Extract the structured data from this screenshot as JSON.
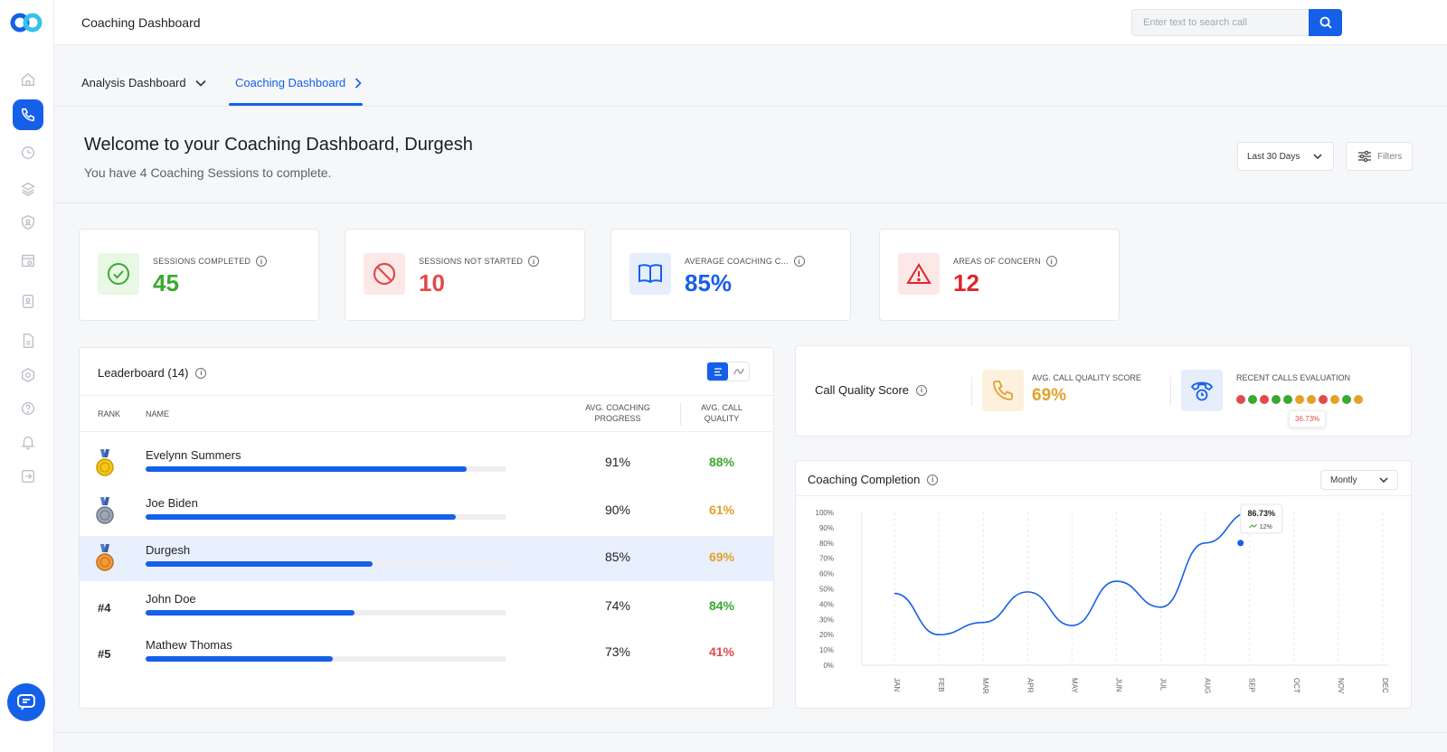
{
  "topbar": {
    "title": "Coaching Dashboard",
    "search_placeholder": "Enter text to search call"
  },
  "tabs": [
    {
      "label": "Analysis Dashboard"
    },
    {
      "label": "Coaching Dashboard"
    }
  ],
  "welcome": {
    "title": "Welcome to your Coaching Dashboard, Durgesh",
    "subtitle": "You have 4 Coaching Sessions to complete."
  },
  "controls": {
    "range": "Last 30 Days",
    "filters": "Filters"
  },
  "stats": [
    {
      "label": "SESSIONS COMPLETED",
      "value": "45",
      "color": "#3aa92f",
      "bg": "#e9f7e5",
      "icon": "check-circle-icon"
    },
    {
      "label": "SESSIONS NOT STARTED",
      "value": "10",
      "color": "#e14b4b",
      "bg": "#fde8e8",
      "icon": "ban-icon"
    },
    {
      "label": "AVERAGE COACHING C...",
      "value": "85%",
      "color": "#1560e8",
      "bg": "#e6eefc",
      "icon": "book-icon"
    },
    {
      "label": "AREAS OF CONCERN",
      "value": "12",
      "color": "#e0252c",
      "bg": "#fde8e8",
      "icon": "warning-icon"
    }
  ],
  "leaderboard": {
    "title": "Leaderboard (14)",
    "columns": {
      "rank": "RANK",
      "name": "NAME",
      "coaching": "AVG. COACHING PROGRESS",
      "quality": "AVG. CALL QUALITY"
    },
    "rows": [
      {
        "rank": "",
        "medal": "gold",
        "name": "Evelynn Summers",
        "progress": 0.89,
        "coaching": "91%",
        "quality": "88%",
        "quality_color": "#3aa92f",
        "highlight": false
      },
      {
        "rank": "",
        "medal": "silver",
        "name": "Joe Biden",
        "progress": 0.86,
        "coaching": "90%",
        "quality": "61%",
        "quality_color": "#e3a12c",
        "highlight": false
      },
      {
        "rank": "",
        "medal": "bronze",
        "name": "Durgesh",
        "progress": 0.63,
        "coaching": "85%",
        "quality": "69%",
        "quality_color": "#e3a12c",
        "highlight": true
      },
      {
        "rank": "#4",
        "medal": "",
        "name": "John Doe",
        "progress": 0.58,
        "coaching": "74%",
        "quality": "84%",
        "quality_color": "#3aa92f",
        "highlight": false
      },
      {
        "rank": "#5",
        "medal": "",
        "name": "Mathew Thomas",
        "progress": 0.52,
        "coaching": "73%",
        "quality": "41%",
        "quality_color": "#e14b4b",
        "highlight": false
      }
    ]
  },
  "call_quality": {
    "title": "Call Quality Score",
    "avg_label": "AVG. CALL QUALITY SCORE",
    "avg_value": "69%",
    "recent_label": "RECENT CALLS EVALUATION",
    "dot_colors": [
      "#e14b4b",
      "#3aa92f",
      "#e14b4b",
      "#3aa92f",
      "#3aa92f",
      "#e3a12c",
      "#e3a12c",
      "#e14b4b",
      "#e3a12c",
      "#3aa92f",
      "#e3a12c"
    ],
    "tooltip": "36.73%"
  },
  "completion": {
    "title": "Coaching Completion",
    "period": "Montly"
  },
  "chart_data": {
    "type": "line",
    "categories": [
      "JAN",
      "FEB",
      "MAR",
      "APR",
      "MAY",
      "JUN",
      "JUL",
      "AUG",
      "SEP",
      "OCT",
      "NOV",
      "DEC"
    ],
    "values": [
      47,
      20,
      28,
      48,
      26,
      55,
      38,
      80,
      100,
      null,
      null,
      null
    ],
    "yticks": [
      "0%",
      "10%",
      "20%",
      "30%",
      "40%",
      "50%",
      "60%",
      "70%",
      "80%",
      "90%",
      "100%"
    ],
    "ylim": [
      0,
      100
    ],
    "annotation": {
      "value": "86.73%",
      "delta": "12%"
    }
  }
}
